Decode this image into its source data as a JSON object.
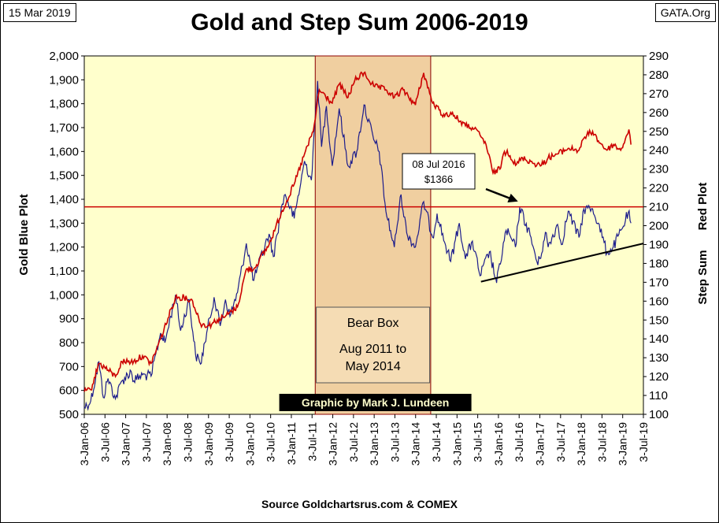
{
  "header": {
    "date_label": "15 Mar 2019",
    "site_label": "GATA.Org",
    "title": "Gold and Step Sum 2006-2019"
  },
  "footer": {
    "source": "Source Goldchartsrus.com & COMEX"
  },
  "colors": {
    "plot_bg": "#ffffcc",
    "bear_box": "#f0cfa0",
    "gold_series": "#1c1c8c",
    "step_sum_series": "#cc0000",
    "reference_line": "#cc0000",
    "trend_line": "#000000",
    "credit_bg": "#000000",
    "credit_text": "#ffffcc"
  },
  "chart_data": {
    "type": "line",
    "title": "Gold and Step Sum 2006-2019",
    "ylabel_left": "Gold    Blue Plot",
    "ylabel_right_top": "Red Plot",
    "ylabel_right_bottom": "Step Sum",
    "grid": false,
    "ylim_left": [
      500,
      2000
    ],
    "ylim_right": [
      100,
      290
    ],
    "y_ticks_left": [
      500,
      600,
      700,
      800,
      900,
      1000,
      1100,
      1200,
      1300,
      1400,
      1500,
      1600,
      1700,
      1800,
      1900,
      2000
    ],
    "y_tick_labels_left": [
      "500",
      "600",
      "700",
      "800",
      "900",
      "1,000",
      "1,100",
      "1,200",
      "1,300",
      "1,400",
      "1,500",
      "1,600",
      "1,700",
      "1,800",
      "1,900",
      "2,000"
    ],
    "y_ticks_right": [
      100,
      110,
      120,
      130,
      140,
      150,
      160,
      170,
      180,
      190,
      200,
      210,
      220,
      230,
      240,
      250,
      260,
      270,
      280,
      290
    ],
    "x_tick_labels": [
      "3-Jan-06",
      "3-Jul-06",
      "3-Jan-07",
      "3-Jul-07",
      "3-Jan-08",
      "3-Jul-08",
      "3-Jan-09",
      "3-Jul-09",
      "3-Jan-10",
      "3-Jul-10",
      "3-Jan-11",
      "3-Jul-11",
      "3-Jan-12",
      "3-Jul-12",
      "3-Jan-13",
      "3-Jul-13",
      "3-Jan-14",
      "3-Jul-14",
      "3-Jan-15",
      "3-Jul-15",
      "3-Jan-16",
      "3-Jul-16",
      "3-Jan-17",
      "3-Jul-17",
      "3-Jan-18",
      "3-Jul-18",
      "3-Jan-19",
      "3-Jul-19"
    ],
    "x_range": [
      "2006-01-03",
      "2019-07-03"
    ],
    "series": [
      {
        "name": "Gold",
        "axis": "left",
        "color": "#1c1c8c",
        "points": [
          [
            "2006-01-03",
            530
          ],
          [
            "2006-03-01",
            555
          ],
          [
            "2006-05-12",
            720
          ],
          [
            "2006-06-20",
            570
          ],
          [
            "2006-08-01",
            650
          ],
          [
            "2006-10-05",
            565
          ],
          [
            "2006-12-01",
            640
          ],
          [
            "2007-02-20",
            680
          ],
          [
            "2007-03-15",
            640
          ],
          [
            "2007-06-01",
            665
          ],
          [
            "2007-08-15",
            660
          ],
          [
            "2007-11-07",
            840
          ],
          [
            "2007-12-15",
            800
          ],
          [
            "2008-03-17",
            1000
          ],
          [
            "2008-05-01",
            850
          ],
          [
            "2008-07-15",
            980
          ],
          [
            "2008-09-10",
            750
          ],
          [
            "2008-10-24",
            710
          ],
          [
            "2008-12-01",
            800
          ],
          [
            "2009-02-20",
            990
          ],
          [
            "2009-04-15",
            870
          ],
          [
            "2009-06-01",
            980
          ],
          [
            "2009-07-10",
            910
          ],
          [
            "2009-09-15",
            1010
          ],
          [
            "2009-12-02",
            1215
          ],
          [
            "2010-02-05",
            1060
          ],
          [
            "2010-03-15",
            1120
          ],
          [
            "2010-06-20",
            1255
          ],
          [
            "2010-07-28",
            1160
          ],
          [
            "2010-10-14",
            1380
          ],
          [
            "2010-11-09",
            1420
          ],
          [
            "2011-01-28",
            1320
          ],
          [
            "2011-04-29",
            1560
          ],
          [
            "2011-06-28",
            1480
          ],
          [
            "2011-08-22",
            1895
          ],
          [
            "2011-09-26",
            1620
          ],
          [
            "2011-11-08",
            1790
          ],
          [
            "2011-12-29",
            1540
          ],
          [
            "2012-02-28",
            1780
          ],
          [
            "2012-05-16",
            1540
          ],
          [
            "2012-08-01",
            1600
          ],
          [
            "2012-10-04",
            1795
          ],
          [
            "2012-12-28",
            1650
          ],
          [
            "2013-02-15",
            1600
          ],
          [
            "2013-04-15",
            1350
          ],
          [
            "2013-06-28",
            1200
          ],
          [
            "2013-08-27",
            1420
          ],
          [
            "2013-10-15",
            1260
          ],
          [
            "2013-12-31",
            1200
          ],
          [
            "2014-03-14",
            1390
          ],
          [
            "2014-06-01",
            1240
          ],
          [
            "2014-07-10",
            1340
          ],
          [
            "2014-09-15",
            1220
          ],
          [
            "2014-11-07",
            1140
          ],
          [
            "2015-01-22",
            1300
          ],
          [
            "2015-03-17",
            1150
          ],
          [
            "2015-05-18",
            1225
          ],
          [
            "2015-07-24",
            1080
          ],
          [
            "2015-10-15",
            1180
          ],
          [
            "2015-12-17",
            1050
          ],
          [
            "2016-03-10",
            1270
          ],
          [
            "2016-05-31",
            1200
          ],
          [
            "2016-07-08",
            1366
          ],
          [
            "2016-10-07",
            1250
          ],
          [
            "2016-12-15",
            1125
          ],
          [
            "2017-02-27",
            1260
          ],
          [
            "2017-03-15",
            1200
          ],
          [
            "2017-06-06",
            1295
          ],
          [
            "2017-07-10",
            1210
          ],
          [
            "2017-09-08",
            1350
          ],
          [
            "2017-12-12",
            1240
          ],
          [
            "2018-01-25",
            1360
          ],
          [
            "2018-04-11",
            1360
          ],
          [
            "2018-06-01",
            1300
          ],
          [
            "2018-08-16",
            1175
          ],
          [
            "2018-10-10",
            1200
          ],
          [
            "2018-12-31",
            1280
          ],
          [
            "2019-02-20",
            1345
          ],
          [
            "2019-03-15",
            1300
          ]
        ]
      },
      {
        "name": "Step Sum",
        "axis": "right",
        "color": "#cc0000",
        "points": [
          [
            "2006-01-03",
            112
          ],
          [
            "2006-03-01",
            113
          ],
          [
            "2006-05-12",
            127
          ],
          [
            "2006-07-01",
            125
          ],
          [
            "2006-10-05",
            120
          ],
          [
            "2006-12-01",
            128
          ],
          [
            "2007-03-15",
            128
          ],
          [
            "2007-06-01",
            131
          ],
          [
            "2007-08-15",
            127
          ],
          [
            "2007-11-07",
            140
          ],
          [
            "2008-03-17",
            162
          ],
          [
            "2008-06-01",
            162
          ],
          [
            "2008-08-15",
            160
          ],
          [
            "2008-10-24",
            148
          ],
          [
            "2009-01-05",
            147
          ],
          [
            "2009-03-20",
            150
          ],
          [
            "2009-06-01",
            152
          ],
          [
            "2009-09-15",
            157
          ],
          [
            "2009-12-02",
            177
          ],
          [
            "2010-02-05",
            177
          ],
          [
            "2010-06-20",
            190
          ],
          [
            "2010-10-14",
            208
          ],
          [
            "2011-01-28",
            222
          ],
          [
            "2011-04-29",
            238
          ],
          [
            "2011-07-15",
            250
          ],
          [
            "2011-09-06",
            272
          ],
          [
            "2011-12-29",
            265
          ],
          [
            "2012-02-28",
            275
          ],
          [
            "2012-05-16",
            268
          ],
          [
            "2012-07-15",
            277
          ],
          [
            "2012-10-04",
            281
          ],
          [
            "2012-12-28",
            274
          ],
          [
            "2013-04-15",
            272
          ],
          [
            "2013-06-28",
            268
          ],
          [
            "2013-09-15",
            272
          ],
          [
            "2013-12-31",
            264
          ],
          [
            "2014-03-14",
            281
          ],
          [
            "2014-06-01",
            265
          ],
          [
            "2014-09-15",
            258
          ],
          [
            "2014-11-07",
            260
          ],
          [
            "2015-03-17",
            253
          ],
          [
            "2015-05-18",
            252
          ],
          [
            "2015-07-24",
            248
          ],
          [
            "2015-09-15",
            243
          ],
          [
            "2015-11-15",
            228
          ],
          [
            "2016-01-15",
            230
          ],
          [
            "2016-02-15",
            238
          ],
          [
            "2016-03-20",
            240
          ],
          [
            "2016-06-01",
            232
          ],
          [
            "2016-08-01",
            236
          ],
          [
            "2016-11-15",
            233
          ],
          [
            "2017-01-15",
            232
          ],
          [
            "2017-03-15",
            236
          ],
          [
            "2017-06-06",
            238
          ],
          [
            "2017-09-08",
            241
          ],
          [
            "2017-12-12",
            240
          ],
          [
            "2018-02-01",
            247
          ],
          [
            "2018-04-11",
            250
          ],
          [
            "2018-06-01",
            245
          ],
          [
            "2018-08-16",
            240
          ],
          [
            "2018-10-10",
            243
          ],
          [
            "2018-12-15",
            240
          ],
          [
            "2019-01-25",
            246
          ],
          [
            "2019-02-25",
            251
          ],
          [
            "2019-03-15",
            243
          ]
        ]
      }
    ],
    "reference_line": {
      "axis": "right",
      "value": 210
    },
    "trend_line": {
      "axis": "left",
      "from": [
        "2015-08-01",
        1055
      ],
      "to": [
        "2019-07-03",
        1215
      ]
    },
    "bear_box": {
      "start": "2011-08-01",
      "end": "2014-05-15",
      "label_line1": "Bear Box",
      "label_line2": "Aug 2011 to",
      "label_line3": "May 2014"
    },
    "annotation": {
      "date_label": "08 Jul 2016",
      "value_label": "$1366",
      "date": "2016-07-08",
      "value": 1366
    },
    "credit": "Graphic by Mark J. Lundeen"
  }
}
